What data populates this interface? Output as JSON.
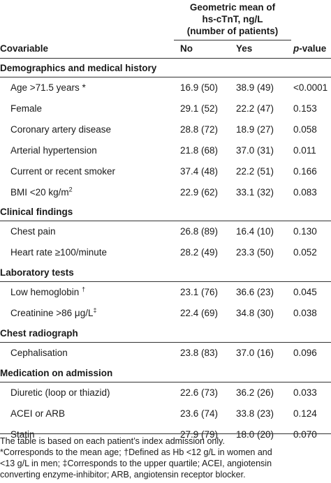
{
  "header": {
    "group_line1": "Geometric mean of",
    "group_line2": "hs-cTnT, ng/L",
    "group_line3": "(number of patients)",
    "col_covariable": "Covariable",
    "col_no": "No",
    "col_yes": "Yes",
    "col_p_prefix": "p",
    "col_p_suffix": "-value"
  },
  "sections": [
    {
      "title": "Demographics and medical history",
      "rows": [
        {
          "label": "Age >71.5 years *",
          "sup": "",
          "no": "16.9 (50)",
          "yes": "38.9 (49)",
          "p": "<0.0001"
        },
        {
          "label": "Female",
          "sup": "",
          "no": "29.1 (52)",
          "yes": "22.2 (47)",
          "p": "0.153"
        },
        {
          "label": "Coronary artery disease",
          "sup": "",
          "no": "28.8 (72)",
          "yes": "18.9 (27)",
          "p": "0.058"
        },
        {
          "label": "Arterial hypertension",
          "sup": "",
          "no": "21.8 (68)",
          "yes": "37.0 (31)",
          "p": "0.011"
        },
        {
          "label": "Current or recent smoker",
          "sup": "",
          "no": "37.4 (48)",
          "yes": "22.2 (51)",
          "p": "0.166"
        },
        {
          "label": "BMI <20 kg/m",
          "sup": "2",
          "no": "22.9 (62)",
          "yes": "33.1 (32)",
          "p": "0.083"
        }
      ]
    },
    {
      "title": "Clinical findings",
      "rows": [
        {
          "label": "Chest pain",
          "sup": "",
          "no": "26.8 (89)",
          "yes": "16.4 (10)",
          "p": "0.130"
        },
        {
          "label": "Heart rate ≥100/minute",
          "sup": "",
          "no": "28.2 (49)",
          "yes": "23.3 (50)",
          "p": "0.052"
        }
      ]
    },
    {
      "title": "Laboratory tests",
      "rows": [
        {
          "label": "Low hemoglobin ",
          "sup": "†",
          "no": "23.1 (76)",
          "yes": "36.6 (23)",
          "p": "0.045"
        },
        {
          "label": "Creatinine >86 μg/L",
          "sup": "‡",
          "no": "22.4 (69)",
          "yes": "34.8 (30)",
          "p": "0.038"
        }
      ]
    },
    {
      "title": "Chest radiograph",
      "rows": [
        {
          "label": "Cephalisation",
          "sup": "",
          "no": "23.8 (83)",
          "yes": "37.0 (16)",
          "p": "0.096"
        }
      ]
    },
    {
      "title": "Medication on admission",
      "rows": [
        {
          "label": "Diuretic (loop or thiazid)",
          "sup": "",
          "no": "22.6 (73)",
          "yes": "36.2 (26)",
          "p": "0.033"
        },
        {
          "label": "ACEI or ARB",
          "sup": "",
          "no": "23.6 (74)",
          "yes": "33.8 (23)",
          "p": "0.124"
        },
        {
          "label": "Statin",
          "sup": "",
          "no": "27.9 (79)",
          "yes": "18.0 (20)",
          "p": "0.070"
        }
      ]
    }
  ],
  "footnote": {
    "line1": "The table is based on each patient’s index admission only.",
    "line2": "*Corresponds to the mean age; †Defined as Hb <12 g/L in women and",
    "line3": "<13 g/L in men; ‡Corresponds to the upper quartile; ACEI, angiotensin",
    "line4": "converting enzyme-inhibitor; ARB, angiotensin receptor blocker."
  }
}
